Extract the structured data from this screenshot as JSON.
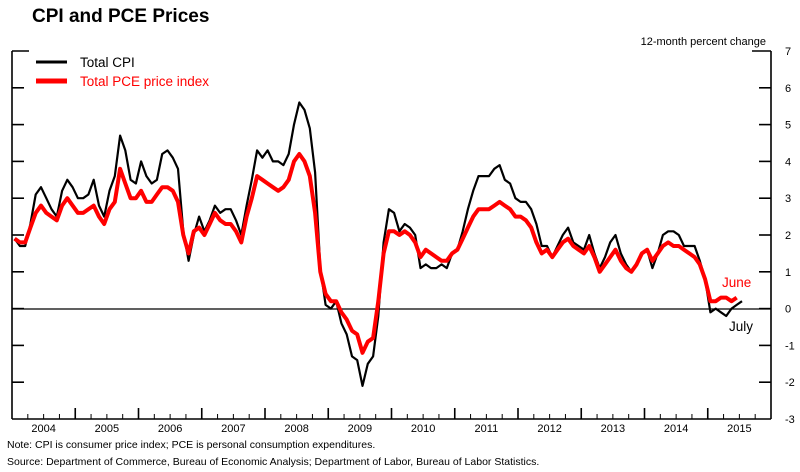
{
  "chart_data": {
    "type": "line",
    "title": "CPI and PCE Prices",
    "ylabel": "12-month percent change",
    "xlabel": "",
    "ylim": [
      -3,
      7
    ],
    "xlim": [
      "2004-01",
      "2015-12"
    ],
    "yticks": [
      "7",
      "6",
      "5",
      "4",
      "3",
      "2",
      "1",
      "0",
      "-1",
      "-2",
      "-3"
    ],
    "ytick_values": [
      7,
      6,
      5,
      4,
      3,
      2,
      1,
      0,
      -1,
      -2,
      -3
    ],
    "xtick_labels": [
      "2004",
      "2005",
      "2006",
      "2007",
      "2008",
      "2009",
      "2010",
      "2011",
      "2012",
      "2013",
      "2014",
      "2015"
    ],
    "grid": false,
    "zero_line": true,
    "legend": {
      "placement": "top-left",
      "entries": [
        {
          "name": "Total CPI",
          "color": "#000000"
        },
        {
          "name": "Total PCE price index",
          "color": "#ff0000"
        }
      ]
    },
    "series": [
      {
        "name": "Total CPI",
        "color": "#000000",
        "start": "2004-01",
        "values": [
          1.9,
          1.7,
          1.7,
          2.3,
          3.1,
          3.3,
          3.0,
          2.7,
          2.5,
          3.2,
          3.5,
          3.3,
          3.0,
          3.0,
          3.1,
          3.5,
          2.8,
          2.5,
          3.2,
          3.6,
          4.7,
          4.3,
          3.5,
          3.4,
          4.0,
          3.6,
          3.4,
          3.5,
          4.2,
          4.3,
          4.1,
          3.8,
          2.1,
          1.3,
          2.0,
          2.5,
          2.1,
          2.4,
          2.8,
          2.6,
          2.7,
          2.7,
          2.4,
          2.0,
          2.8,
          3.5,
          4.3,
          4.1,
          4.3,
          4.0,
          4.0,
          3.9,
          4.2,
          5.0,
          5.6,
          5.4,
          4.9,
          3.7,
          1.1,
          0.1,
          0.0,
          0.2,
          -0.4,
          -0.7,
          -1.3,
          -1.4,
          -2.1,
          -1.5,
          -1.3,
          -0.2,
          1.8,
          2.7,
          2.6,
          2.1,
          2.3,
          2.2,
          2.0,
          1.1,
          1.2,
          1.1,
          1.1,
          1.2,
          1.1,
          1.5,
          1.6,
          2.1,
          2.7,
          3.2,
          3.6,
          3.6,
          3.6,
          3.8,
          3.9,
          3.5,
          3.4,
          3.0,
          2.9,
          2.9,
          2.7,
          2.3,
          1.7,
          1.7,
          1.4,
          1.7,
          2.0,
          2.2,
          1.8,
          1.7,
          1.6,
          2.0,
          1.5,
          1.1,
          1.4,
          1.8,
          2.0,
          1.5,
          1.2,
          1.0,
          1.2,
          1.5,
          1.6,
          1.1,
          1.5,
          2.0,
          2.1,
          2.1,
          2.0,
          1.7,
          1.7,
          1.7,
          1.3,
          0.8,
          -0.1,
          0.0,
          -0.1,
          -0.2,
          0.0,
          0.1,
          0.2
        ]
      },
      {
        "name": "Total PCE price index",
        "color": "#ff0000",
        "start": "2004-01",
        "values": [
          1.9,
          1.8,
          1.8,
          2.2,
          2.6,
          2.8,
          2.6,
          2.5,
          2.4,
          2.8,
          3.0,
          2.8,
          2.6,
          2.6,
          2.7,
          2.8,
          2.5,
          2.3,
          2.7,
          2.9,
          3.8,
          3.4,
          3.0,
          3.0,
          3.2,
          2.9,
          2.9,
          3.1,
          3.3,
          3.3,
          3.2,
          2.9,
          2.0,
          1.5,
          2.1,
          2.2,
          2.0,
          2.3,
          2.6,
          2.4,
          2.3,
          2.3,
          2.1,
          1.8,
          2.5,
          3.0,
          3.6,
          3.5,
          3.4,
          3.3,
          3.2,
          3.3,
          3.5,
          4.0,
          4.2,
          4.0,
          3.6,
          2.6,
          1.0,
          0.4,
          0.2,
          0.2,
          -0.1,
          -0.3,
          -0.6,
          -0.7,
          -1.2,
          -0.9,
          -0.8,
          0.2,
          1.5,
          2.1,
          2.1,
          2.0,
          2.1,
          2.0,
          1.8,
          1.4,
          1.6,
          1.5,
          1.4,
          1.3,
          1.3,
          1.5,
          1.6,
          1.9,
          2.2,
          2.5,
          2.7,
          2.7,
          2.7,
          2.8,
          2.9,
          2.8,
          2.7,
          2.5,
          2.5,
          2.4,
          2.2,
          1.8,
          1.5,
          1.6,
          1.4,
          1.6,
          1.8,
          1.9,
          1.7,
          1.6,
          1.5,
          1.7,
          1.4,
          1.0,
          1.2,
          1.4,
          1.6,
          1.3,
          1.1,
          1.0,
          1.2,
          1.5,
          1.6,
          1.3,
          1.5,
          1.7,
          1.8,
          1.7,
          1.7,
          1.6,
          1.5,
          1.4,
          1.2,
          0.8,
          0.2,
          0.2,
          0.3,
          0.3,
          0.2,
          0.3
        ]
      }
    ],
    "annotations": [
      {
        "text": "June",
        "series": "Total PCE price index",
        "color": "#ff0000"
      },
      {
        "text": "July",
        "series": "Total CPI",
        "color": "#000000"
      }
    ]
  },
  "footer": {
    "note": "Note:  CPI is consumer price index; PCE is personal consumption expenditures.",
    "source": "Source:  Department of Commerce, Bureau of Economic Analysis; Department of Labor, Bureau of Labor Statistics."
  }
}
